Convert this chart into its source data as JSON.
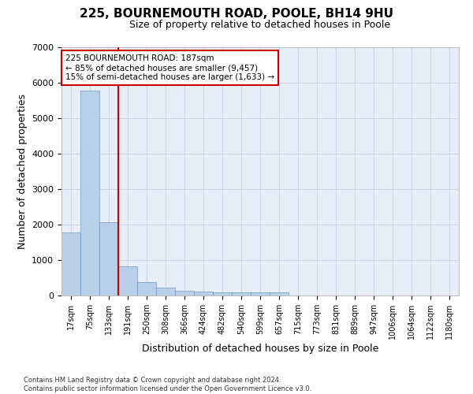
{
  "title_line1": "225, BOURNEMOUTH ROAD, POOLE, BH14 9HU",
  "title_line2": "Size of property relative to detached houses in Poole",
  "xlabel": "Distribution of detached houses by size in Poole",
  "ylabel": "Number of detached properties",
  "footnote_line1": "Contains HM Land Registry data © Crown copyright and database right 2024.",
  "footnote_line2": "Contains public sector information licensed under the Open Government Licence v3.0.",
  "bar_labels": [
    "17sqm",
    "75sqm",
    "133sqm",
    "191sqm",
    "250sqm",
    "308sqm",
    "366sqm",
    "424sqm",
    "482sqm",
    "540sqm",
    "599sqm",
    "657sqm",
    "715sqm",
    "773sqm",
    "831sqm",
    "889sqm",
    "947sqm",
    "1006sqm",
    "1064sqm",
    "1122sqm",
    "1180sqm"
  ],
  "bar_values": [
    1780,
    5780,
    2060,
    820,
    370,
    230,
    130,
    110,
    100,
    80,
    80,
    80,
    0,
    0,
    0,
    0,
    0,
    0,
    0,
    0,
    0
  ],
  "bar_color": "#b8cfe8",
  "bar_edge_color": "#7098c0",
  "vline_after_index": 2,
  "vline_color": "#cc0000",
  "annotation_title": "225 BOURNEMOUTH ROAD: 187sqm",
  "annotation_line1": "← 85% of detached houses are smaller (9,457)",
  "annotation_line2": "15% of semi-detached houses are larger (1,633) →",
  "annotation_box_color": "#cc0000",
  "ylim": [
    0,
    7000
  ],
  "yticks": [
    0,
    1000,
    2000,
    3000,
    4000,
    5000,
    6000,
    7000
  ],
  "grid_color": "#c8d4e4",
  "background_color": "#e8eef8",
  "title1_fontsize": 11,
  "title2_fontsize": 9,
  "tick_fontsize": 7,
  "ylabel_fontsize": 9,
  "xlabel_fontsize": 9
}
